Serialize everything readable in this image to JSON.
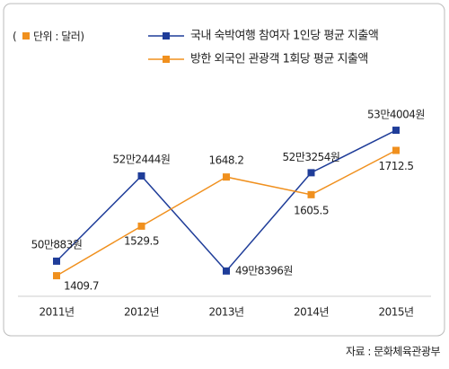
{
  "chart_data": {
    "type": "line",
    "unit": {
      "open": "(",
      "text": "단위 : 달러)"
    },
    "categories": [
      "2011년",
      "2012년",
      "2013년",
      "2014년",
      "2015년"
    ],
    "series": [
      {
        "name": "국내 숙박여행 참여자 1인당 평균 지출액",
        "color": "#1f3d99",
        "values": [
          500883,
          522444,
          498396,
          523254,
          534004
        ],
        "value_labels": [
          "50만883원",
          "52만2444원",
          "49만8396원",
          "52만3254원",
          "53만4004원"
        ]
      },
      {
        "name": "방한 외국인 관광객 1회당 평균 지출액",
        "color": "#f0901e",
        "axis": "y2",
        "values": [
          1409.7,
          1529.5,
          1648.2,
          1605.5,
          1712.5
        ]
      }
    ],
    "ylim": [
      492000,
      559000
    ],
    "y2lim": [
      1360,
      2000
    ],
    "source": "자료 : 문화체육관광부"
  }
}
